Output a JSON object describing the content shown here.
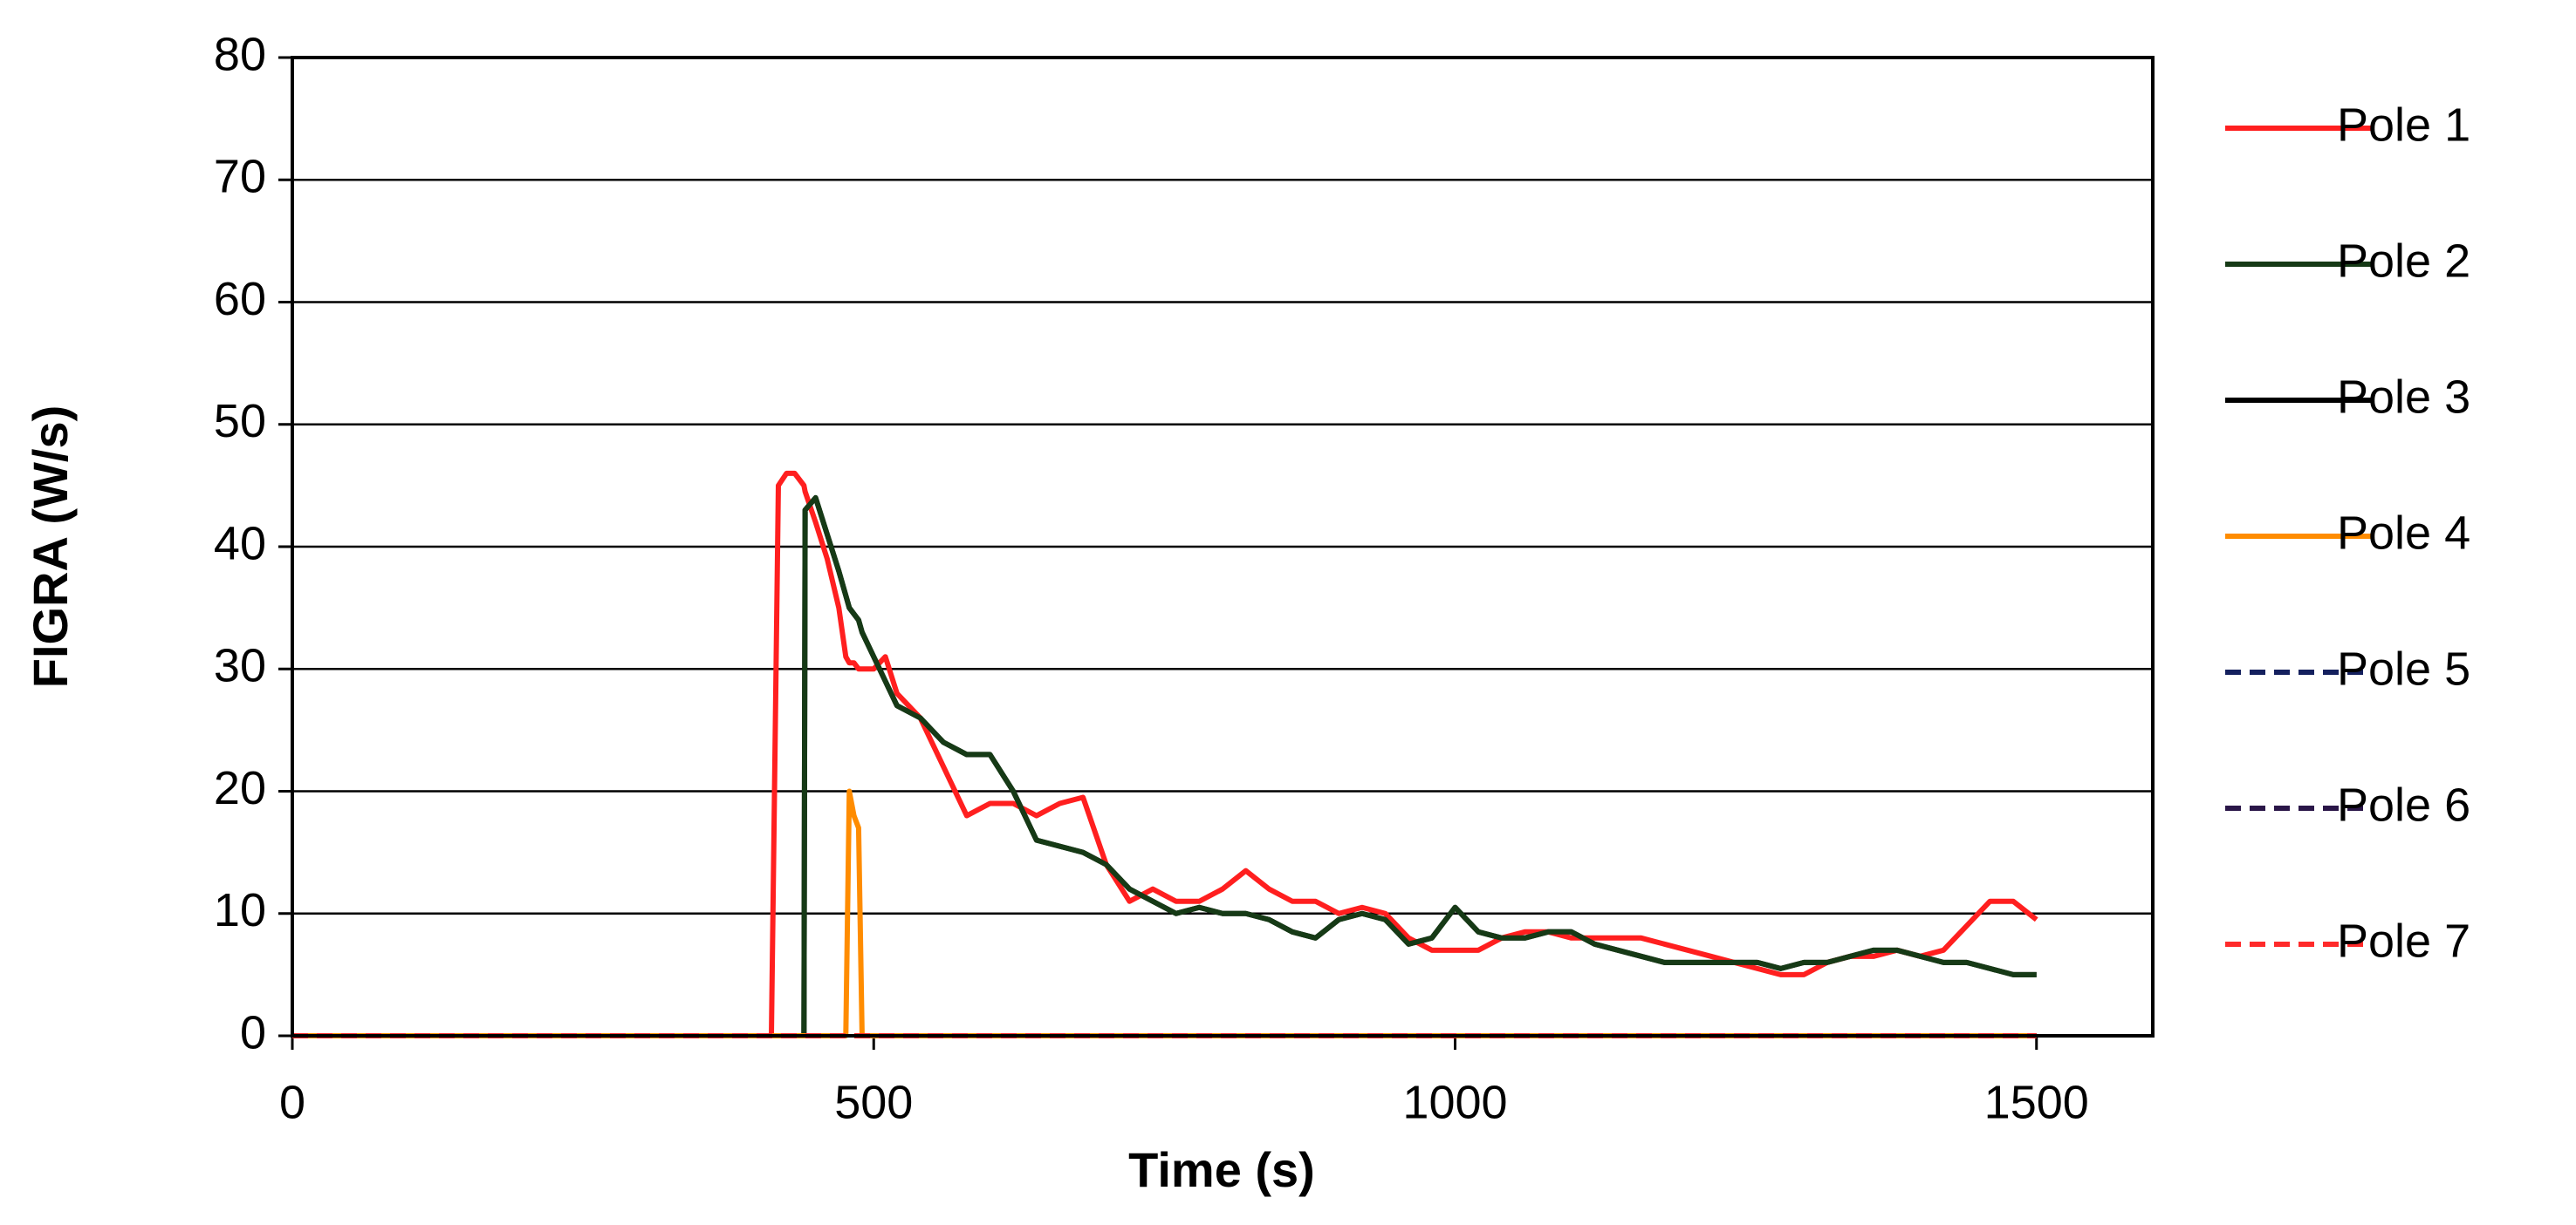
{
  "chart_data": {
    "type": "line",
    "x_label": "Time (s)",
    "y_label": "FIGRA (W/s)",
    "x": [
      0,
      100,
      200,
      300,
      400,
      412,
      418,
      425,
      432,
      440,
      441,
      450,
      460,
      470,
      476,
      479,
      483,
      487,
      490,
      500,
      510,
      520,
      540,
      560,
      580,
      600,
      620,
      640,
      660,
      680,
      700,
      720,
      740,
      760,
      780,
      800,
      820,
      840,
      860,
      880,
      900,
      920,
      940,
      960,
      980,
      1000,
      1020,
      1040,
      1060,
      1080,
      1100,
      1120,
      1140,
      1160,
      1180,
      1200,
      1220,
      1240,
      1260,
      1280,
      1300,
      1320,
      1340,
      1360,
      1380,
      1400,
      1420,
      1440,
      1460,
      1480,
      1500
    ],
    "series": [
      {
        "name": "Pole 1",
        "color": "#ff1f1f",
        "dash": false,
        "values": [
          0,
          0,
          0,
          0,
          0,
          0,
          45,
          46,
          46,
          45,
          44.5,
          42,
          39,
          35,
          31,
          30.5,
          30.5,
          30,
          30,
          30,
          31,
          28,
          26,
          22,
          18,
          19,
          19,
          18,
          19,
          19.5,
          14,
          11,
          12,
          11,
          11,
          12,
          13.5,
          12,
          11,
          11,
          10,
          10.5,
          10,
          8,
          7,
          7,
          7,
          8,
          8.5,
          8.5,
          8,
          8,
          8,
          8,
          7.5,
          7,
          6.5,
          6,
          5.5,
          5,
          5,
          6,
          6.5,
          6.5,
          7,
          6.5,
          7,
          9,
          11,
          11,
          9.5
        ]
      },
      {
        "name": "Pole 2",
        "color": "#163a16",
        "dash": false,
        "values": [
          0,
          0,
          0,
          0,
          0,
          0,
          0,
          0,
          0,
          0,
          43,
          44,
          41,
          38,
          36,
          35,
          34.5,
          34,
          33,
          31,
          29,
          27,
          26,
          24,
          23,
          23,
          20,
          16,
          15.5,
          15,
          14,
          12,
          11,
          10,
          10.5,
          10,
          10,
          9.5,
          8.5,
          8,
          9.5,
          10,
          9.5,
          7.5,
          8,
          10.5,
          8.5,
          8,
          8,
          8.5,
          8.5,
          7.5,
          7,
          6.5,
          6,
          6,
          6,
          6,
          6,
          5.5,
          6,
          6,
          6.5,
          7,
          7,
          6.5,
          6,
          6,
          5.5,
          5,
          5
        ]
      },
      {
        "name": "Pole 3",
        "color": "#000000",
        "dash": false,
        "values": [
          0,
          0,
          0,
          0,
          0,
          0,
          0,
          0,
          0,
          0,
          43,
          44,
          41,
          38,
          36,
          35,
          34.5,
          34,
          33,
          31,
          29,
          27,
          26,
          24,
          23,
          23,
          20,
          16,
          15.5,
          15,
          14,
          12,
          11,
          10,
          10.5,
          10,
          10,
          9.5,
          8.5,
          8,
          9.5,
          10,
          9.5,
          7.5,
          8,
          10.5,
          8.5,
          8,
          8,
          8.5,
          8.5,
          7.5,
          7,
          6.5,
          6,
          6,
          6,
          6,
          6,
          5.5,
          6,
          6,
          6.5,
          7,
          7,
          6.5,
          6,
          6,
          5.5,
          5,
          5
        ]
      },
      {
        "name": "Pole 4",
        "color": "#ff8c00",
        "dash": false,
        "values": [
          0,
          0,
          0,
          0,
          0,
          0,
          0,
          0,
          0,
          0,
          0,
          0,
          0,
          0,
          0,
          20,
          18,
          17,
          0,
          0,
          0,
          0,
          0,
          0,
          0,
          0,
          0,
          0,
          0,
          0,
          0,
          0,
          0,
          0,
          0,
          0,
          0,
          0,
          0,
          0,
          0,
          0,
          0,
          0,
          0,
          0,
          0,
          0,
          0,
          0,
          0,
          0,
          0,
          0,
          0,
          0,
          0,
          0,
          0,
          0,
          0,
          0,
          0,
          0,
          0,
          0,
          0,
          0,
          0,
          0,
          0
        ]
      },
      {
        "name": "Pole 5",
        "color": "#14205e",
        "dash": true,
        "values": [
          0,
          0,
          0,
          0,
          0,
          0,
          0,
          0,
          0,
          0,
          0,
          0,
          0,
          0,
          0,
          0,
          0,
          0,
          0,
          0,
          0,
          0,
          0,
          0,
          0,
          0,
          0,
          0,
          0,
          0,
          0,
          0,
          0,
          0,
          0,
          0,
          0,
          0,
          0,
          0,
          0,
          0,
          0,
          0,
          0,
          0,
          0,
          0,
          0,
          0,
          0,
          0,
          0,
          0,
          0,
          0,
          0,
          0,
          0,
          0,
          0,
          0,
          0,
          0,
          0,
          0,
          0,
          0,
          0,
          0,
          0
        ]
      },
      {
        "name": "Pole 6",
        "color": "#2a1648",
        "dash": true,
        "values": [
          0,
          0,
          0,
          0,
          0,
          0,
          0,
          0,
          0,
          0,
          0,
          0,
          0,
          0,
          0,
          0,
          0,
          0,
          0,
          0,
          0,
          0,
          0,
          0,
          0,
          0,
          0,
          0,
          0,
          0,
          0,
          0,
          0,
          0,
          0,
          0,
          0,
          0,
          0,
          0,
          0,
          0,
          0,
          0,
          0,
          0,
          0,
          0,
          0,
          0,
          0,
          0,
          0,
          0,
          0,
          0,
          0,
          0,
          0,
          0,
          0,
          0,
          0,
          0,
          0,
          0,
          0,
          0,
          0,
          0,
          0
        ]
      },
      {
        "name": "Pole 7",
        "color": "#ff2a2a",
        "dash": true,
        "values": [
          0,
          0,
          0,
          0,
          0,
          0,
          0,
          0,
          0,
          0,
          0,
          0,
          0,
          0,
          0,
          0,
          0,
          0,
          0,
          0,
          0,
          0,
          0,
          0,
          0,
          0,
          0,
          0,
          0,
          0,
          0,
          0,
          0,
          0,
          0,
          0,
          0,
          0,
          0,
          0,
          0,
          0,
          0,
          0,
          0,
          0,
          0,
          0,
          0,
          0,
          0,
          0,
          0,
          0,
          0,
          0,
          0,
          0,
          0,
          0,
          0,
          0,
          0,
          0,
          0,
          0,
          0,
          0,
          0,
          0,
          0
        ]
      }
    ],
    "xlim": [
      0,
      1600
    ],
    "xticks": [
      0,
      500,
      1000,
      1500
    ],
    "ylim": [
      0,
      80
    ],
    "yticks": [
      0,
      10,
      20,
      30,
      40,
      50,
      60,
      70,
      80
    ],
    "grid": true,
    "legend": "right"
  }
}
